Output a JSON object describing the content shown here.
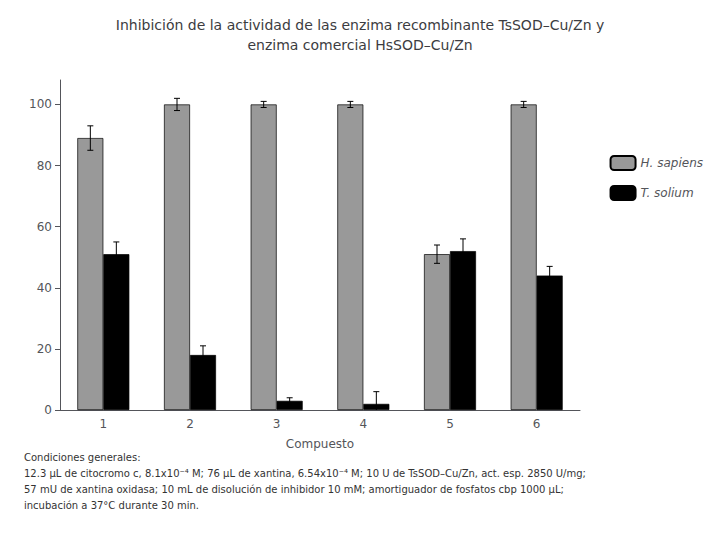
{
  "chart_data": {
    "type": "bar",
    "title": "Inhibición de la actividad de las enzima recombinante TsSOD–Cu/Zn y\nenzima comercial HsSOD–Cu/Zn",
    "xlabel": "Compuesto",
    "categories": [
      1,
      2,
      3,
      4,
      5,
      6
    ],
    "series": [
      {
        "name": "H. sapiens",
        "color": "#999999",
        "values": [
          89,
          100,
          100,
          100,
          51,
          100
        ],
        "errors": [
          4,
          2,
          1,
          1,
          3,
          1
        ]
      },
      {
        "name": "T. solium",
        "color": "#000000",
        "values": [
          51,
          18,
          3,
          2,
          52,
          44
        ],
        "errors": [
          4,
          3,
          1,
          4,
          4,
          3
        ]
      }
    ],
    "ylim": [
      0,
      108
    ],
    "yticks": [
      0,
      20,
      40,
      60,
      80,
      100
    ],
    "grid": false,
    "legend": "right",
    "annotations": [
      "Condiciones generales:",
      "12.3 μL de citocromo c, 8.1x10⁻⁴ M; 76 μL de xantina, 6.54x10⁻⁴ M; 10 U de TsSOD–Cu/Zn, act. esp. 2850 U/mg;",
      "57 mU de xantina oxidasa; 10 mL de disolución de inhibidor 10 mM; amortiguador de fosfatos cbp 1000 μL;",
      "incubación a 37°C durante 30 min."
    ]
  }
}
